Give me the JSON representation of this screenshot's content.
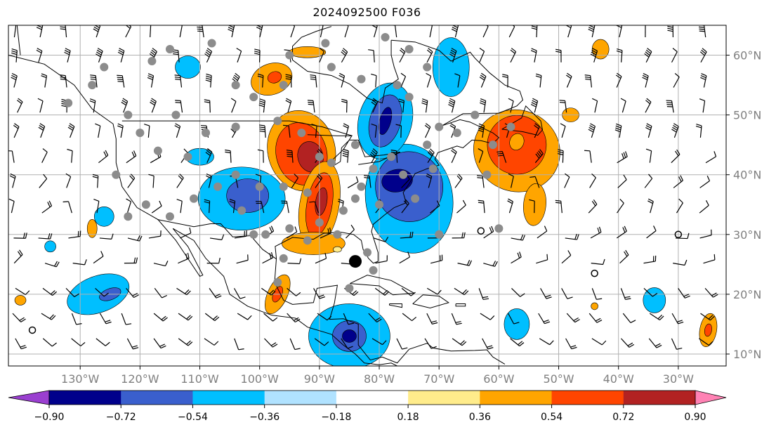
{
  "title": "2024092500 F036",
  "map": {
    "projection": "PlateCarree",
    "lon_range": [
      -142,
      -22
    ],
    "lat_range": [
      8,
      65
    ],
    "lon_ticks": [
      {
        "value": -130,
        "label": "130°W"
      },
      {
        "value": -120,
        "label": "120°W"
      },
      {
        "value": -110,
        "label": "110°W"
      },
      {
        "value": -100,
        "label": "100°W"
      },
      {
        "value": -90,
        "label": "90°W"
      },
      {
        "value": -80,
        "label": "80°W"
      },
      {
        "value": -70,
        "label": "70°W"
      },
      {
        "value": -60,
        "label": "60°W"
      },
      {
        "value": -50,
        "label": "50°W"
      },
      {
        "value": -40,
        "label": "40°W"
      },
      {
        "value": -30,
        "label": "30°W"
      }
    ],
    "lat_ticks": [
      {
        "value": 60,
        "label": "60°N"
      },
      {
        "value": 50,
        "label": "50°N"
      },
      {
        "value": 40,
        "label": "40°N"
      },
      {
        "value": 30,
        "label": "30°N"
      },
      {
        "value": 20,
        "label": "20°N"
      },
      {
        "value": 10,
        "label": "10°N"
      }
    ],
    "grid": true,
    "gridline_color": "#b0b0b0",
    "coastline_color": "#000000",
    "wind_barbs": true,
    "gray_markers": true,
    "storm_marker": {
      "lon": -84,
      "lat": 25.5
    }
  },
  "colorbar": {
    "orientation": "horizontal",
    "extend": "both",
    "bounds": [
      -0.9,
      -0.72,
      -0.54,
      -0.36,
      -0.18,
      0.18,
      0.36,
      0.54,
      0.72,
      0.9
    ],
    "tick_labels": [
      "−0.90",
      "−0.72",
      "−0.54",
      "−0.36",
      "−0.18",
      "0.18",
      "0.36",
      "0.54",
      "0.72",
      "0.90"
    ],
    "under_color": "#9a3fd0",
    "over_color": "#ff82b4",
    "colors": [
      "#00008b",
      "#3a5fcd",
      "#00bfff",
      "#b0e2ff",
      "#ffffff",
      "#ffec8b",
      "#ffa500",
      "#ff4500",
      "#b22222"
    ]
  }
}
